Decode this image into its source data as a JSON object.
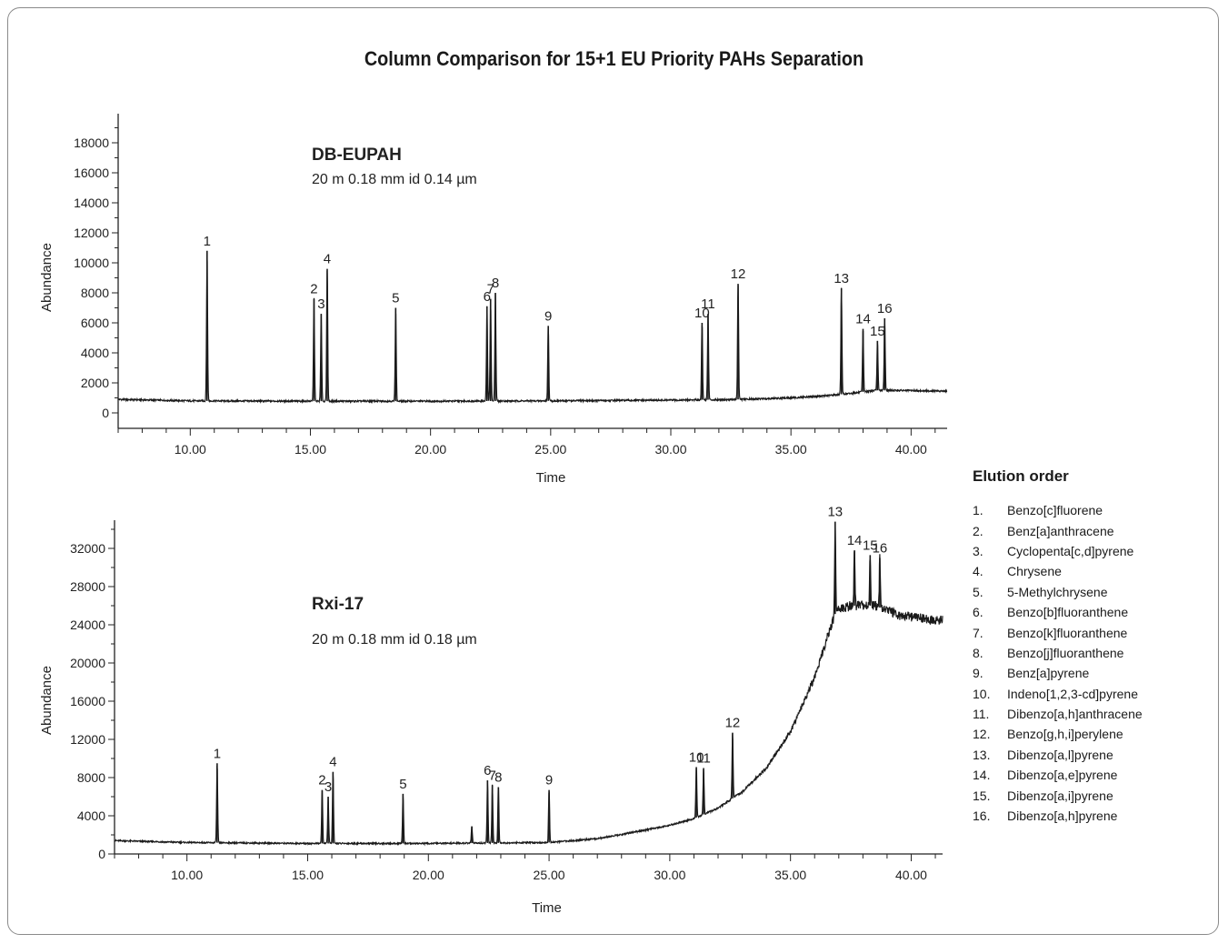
{
  "title": "Column Comparison for 15+1 EU Priority PAHs Separation",
  "legend": {
    "title": "Elution order",
    "items": [
      {
        "num": "1.",
        "name": "Benzo[c]fluorene"
      },
      {
        "num": "2.",
        "name": "Benz[a]anthracene"
      },
      {
        "num": "3.",
        "name": "Cyclopenta[c,d]pyrene"
      },
      {
        "num": "4.",
        "name": "Chrysene"
      },
      {
        "num": "5.",
        "name": "5-Methylchrysene"
      },
      {
        "num": "6.",
        "name": "Benzo[b]fluoranthene"
      },
      {
        "num": "7.",
        "name": "Benzo[k]fluoranthene"
      },
      {
        "num": "8.",
        "name": "Benzo[j]fluoranthene"
      },
      {
        "num": "9.",
        "name": "Benz[a]pyrene"
      },
      {
        "num": "10.",
        "name": "Indeno[1,2,3-cd]pyrene"
      },
      {
        "num": "11.",
        "name": "Dibenzo[a,h]anthracene"
      },
      {
        "num": "12.",
        "name": "Benzo[g,h,i]perylene"
      },
      {
        "num": "13.",
        "name": "Dibenzo[a,l]pyrene"
      },
      {
        "num": "14.",
        "name": "Dibenzo[a,e]pyrene"
      },
      {
        "num": "15.",
        "name": "Dibenzo[a,i]pyrene"
      },
      {
        "num": "16.",
        "name": "Dibenzo[a,h]pyrene"
      }
    ]
  },
  "chart_data": [
    {
      "type": "line",
      "column_name": "DB-EUPAH",
      "column_spec": "20 m 0.18 mm id 0.14 µm",
      "xlabel": "Time",
      "ylabel": "Abundance",
      "xlim": [
        7,
        41.5
      ],
      "ylim": [
        -1000,
        20000
      ],
      "x_ticks": [
        "10.00",
        "15.00",
        "20.00",
        "25.00",
        "30.00",
        "35.00",
        "40.00"
      ],
      "y_ticks": [
        "0",
        "2000",
        "4000",
        "6000",
        "8000",
        "10000",
        "12000",
        "14000",
        "16000",
        "18000"
      ],
      "baseline": [
        [
          7,
          900
        ],
        [
          10,
          800
        ],
        [
          15,
          780
        ],
        [
          20,
          780
        ],
        [
          25,
          800
        ],
        [
          30,
          850
        ],
        [
          33,
          900
        ],
        [
          35,
          1000
        ],
        [
          36.5,
          1150
        ],
        [
          37.5,
          1300
        ],
        [
          38.5,
          1500
        ],
        [
          39.5,
          1500
        ],
        [
          41.5,
          1450
        ]
      ],
      "peaks": [
        {
          "label": "1",
          "x": 10.7,
          "y": 10800
        },
        {
          "label": "2",
          "x": 15.15,
          "y": 7600
        },
        {
          "label": "3",
          "x": 15.45,
          "y": 6600
        },
        {
          "label": "4",
          "x": 15.7,
          "y": 9600
        },
        {
          "label": "5",
          "x": 18.55,
          "y": 7000
        },
        {
          "label": "6",
          "x": 22.35,
          "y": 7100
        },
        {
          "label": "7",
          "x": 22.5,
          "y": 7600
        },
        {
          "label": "8",
          "x": 22.7,
          "y": 8000
        },
        {
          "label": "9",
          "x": 24.9,
          "y": 5800
        },
        {
          "label": "10",
          "x": 31.3,
          "y": 6000
        },
        {
          "label": "11",
          "x": 31.55,
          "y": 6600
        },
        {
          "label": "12",
          "x": 32.8,
          "y": 8600
        },
        {
          "label": "13",
          "x": 37.1,
          "y": 8300
        },
        {
          "label": "14",
          "x": 38.0,
          "y": 5600
        },
        {
          "label": "15",
          "x": 38.6,
          "y": 4800
        },
        {
          "label": "16",
          "x": 38.9,
          "y": 6300
        }
      ]
    },
    {
      "type": "line",
      "column_name": "Rxi-17",
      "column_spec": "20 m 0.18 mm id 0.18 µm",
      "xlabel": "Time",
      "ylabel": "Abundance",
      "xlim": [
        7,
        41.3
      ],
      "ylim": [
        0,
        35000
      ],
      "x_ticks": [
        "10.00",
        "15.00",
        "20.00",
        "25.00",
        "30.00",
        "35.00",
        "40.00"
      ],
      "y_ticks": [
        "0",
        "4000",
        "8000",
        "12000",
        "16000",
        "20000",
        "24000",
        "28000",
        "32000"
      ],
      "baseline": [
        [
          7,
          1400
        ],
        [
          10,
          1200
        ],
        [
          15,
          1100
        ],
        [
          20,
          1100
        ],
        [
          25,
          1200
        ],
        [
          27,
          1600
        ],
        [
          29,
          2500
        ],
        [
          30,
          3000
        ],
        [
          31,
          3700
        ],
        [
          32,
          4800
        ],
        [
          33,
          6500
        ],
        [
          34,
          9000
        ],
        [
          35,
          12800
        ],
        [
          36,
          18500
        ],
        [
          36.5,
          22500
        ],
        [
          36.9,
          25500
        ],
        [
          37.5,
          26000
        ],
        [
          38.5,
          26000
        ],
        [
          39.5,
          25000
        ],
        [
          41,
          24500
        ]
      ],
      "peaks": [
        {
          "label": "1",
          "x": 11.25,
          "y": 9500
        },
        {
          "label": "2",
          "x": 15.6,
          "y": 6700
        },
        {
          "label": "3",
          "x": 15.85,
          "y": 6000
        },
        {
          "label": "4",
          "x": 16.05,
          "y": 8600
        },
        {
          "label": "5",
          "x": 18.95,
          "y": 6300
        },
        {
          "label": "",
          "x": 21.8,
          "y": 2900
        },
        {
          "label": "6",
          "x": 22.45,
          "y": 7700
        },
        {
          "label": "7",
          "x": 22.65,
          "y": 7200
        },
        {
          "label": "8",
          "x": 22.9,
          "y": 7000
        },
        {
          "label": "9",
          "x": 25.0,
          "y": 6700
        },
        {
          "label": "10",
          "x": 31.1,
          "y": 9100
        },
        {
          "label": "11",
          "x": 31.4,
          "y": 9000
        },
        {
          "label": "12",
          "x": 32.6,
          "y": 12700
        },
        {
          "label": "13",
          "x": 36.85,
          "y": 34800
        },
        {
          "label": "14",
          "x": 37.65,
          "y": 31800
        },
        {
          "label": "15",
          "x": 38.3,
          "y": 31300
        },
        {
          "label": "16",
          "x": 38.7,
          "y": 31000
        }
      ]
    }
  ]
}
